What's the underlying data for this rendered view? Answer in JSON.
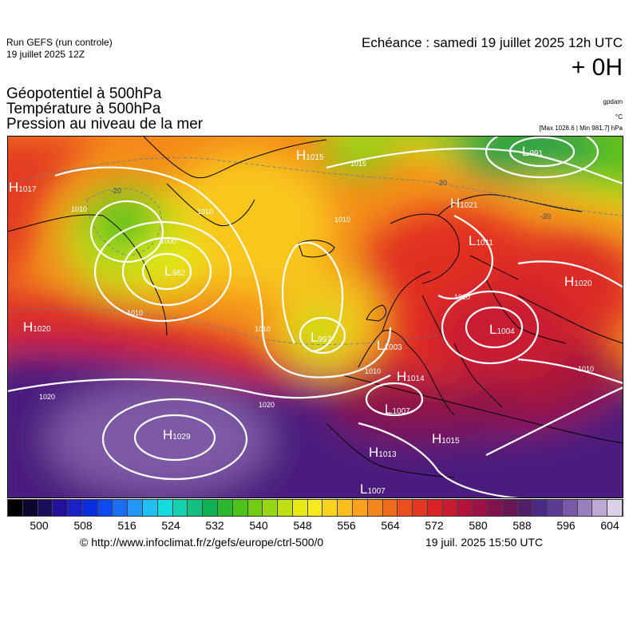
{
  "header": {
    "run": "Run GEFS (run controle)",
    "run_date": "19 juillet 2025 12Z",
    "echeance": "Echéance : samedi 19 juillet 2025 12h UTC",
    "hour": "+ 0H"
  },
  "fields": [
    "Géopotentiel à 500hPa",
    "Température à 500hPa",
    "Pression au niveau de la mer"
  ],
  "units": {
    "geopotential": "gpdam",
    "temperature": "°C",
    "pressure": "[Max 1028.6 | Min 981.7] hPa"
  },
  "map_labels": {
    "highs": [
      {
        "letter": "H",
        "value": "1015"
      },
      {
        "letter": "H",
        "value": "1017"
      },
      {
        "letter": "H",
        "value": "1021"
      },
      {
        "letter": "H",
        "value": "1020"
      },
      {
        "letter": "H",
        "value": "1020"
      },
      {
        "letter": "H",
        "value": "1014"
      },
      {
        "letter": "H",
        "value": "1029"
      },
      {
        "letter": "H",
        "value": "1013"
      },
      {
        "letter": "H",
        "value": "1015"
      }
    ],
    "lows": [
      {
        "letter": "L",
        "value": "991"
      },
      {
        "letter": "L",
        "value": "1011"
      },
      {
        "letter": "L",
        "value": "982"
      },
      {
        "letter": "L",
        "value": "997"
      },
      {
        "letter": "L",
        "value": "1003"
      },
      {
        "letter": "L",
        "value": "1004"
      },
      {
        "letter": "L",
        "value": "1007"
      },
      {
        "letter": "L",
        "value": "1007"
      }
    ],
    "isobars": [
      "1015",
      "1010",
      "1000",
      "1010",
      "1010",
      "1010",
      "1010",
      "1020",
      "1020",
      "1010",
      "1010",
      "1010"
    ],
    "isotherms": [
      "-20",
      "-20",
      "-20"
    ]
  },
  "colorscale": {
    "ticks": [
      "500",
      "508",
      "516",
      "524",
      "532",
      "540",
      "548",
      "556",
      "564",
      "572",
      "580",
      "588",
      "596",
      "604"
    ],
    "colors": [
      "#000000",
      "#0d0730",
      "#1a0d5e",
      "#23109a",
      "#1c1fc6",
      "#0a2de0",
      "#0f4af0",
      "#1a6ef5",
      "#2496f7",
      "#22c0f2",
      "#14dcdc",
      "#16d0b0",
      "#14c080",
      "#10b055",
      "#2bb82c",
      "#4cc21e",
      "#70cc15",
      "#98d512",
      "#c0df12",
      "#e6eb16",
      "#f7eb20",
      "#f9d41f",
      "#fbbd1c",
      "#f9a21a",
      "#f5861a",
      "#f06a1c",
      "#eb4f1f",
      "#e33623",
      "#d72226",
      "#c81a30",
      "#b3153a",
      "#9c1244",
      "#84124e",
      "#6a1759",
      "#521e68",
      "#4a2a83",
      "#5c3b94",
      "#7a5aa8",
      "#9a80bf",
      "#bda8d6",
      "#dcd0e8"
    ]
  },
  "footer": {
    "url": "© http://www.infoclimat.fr/z/gefs/europe/ctrl-500/0",
    "date": "19 juil. 2025 15:50 UTC"
  }
}
